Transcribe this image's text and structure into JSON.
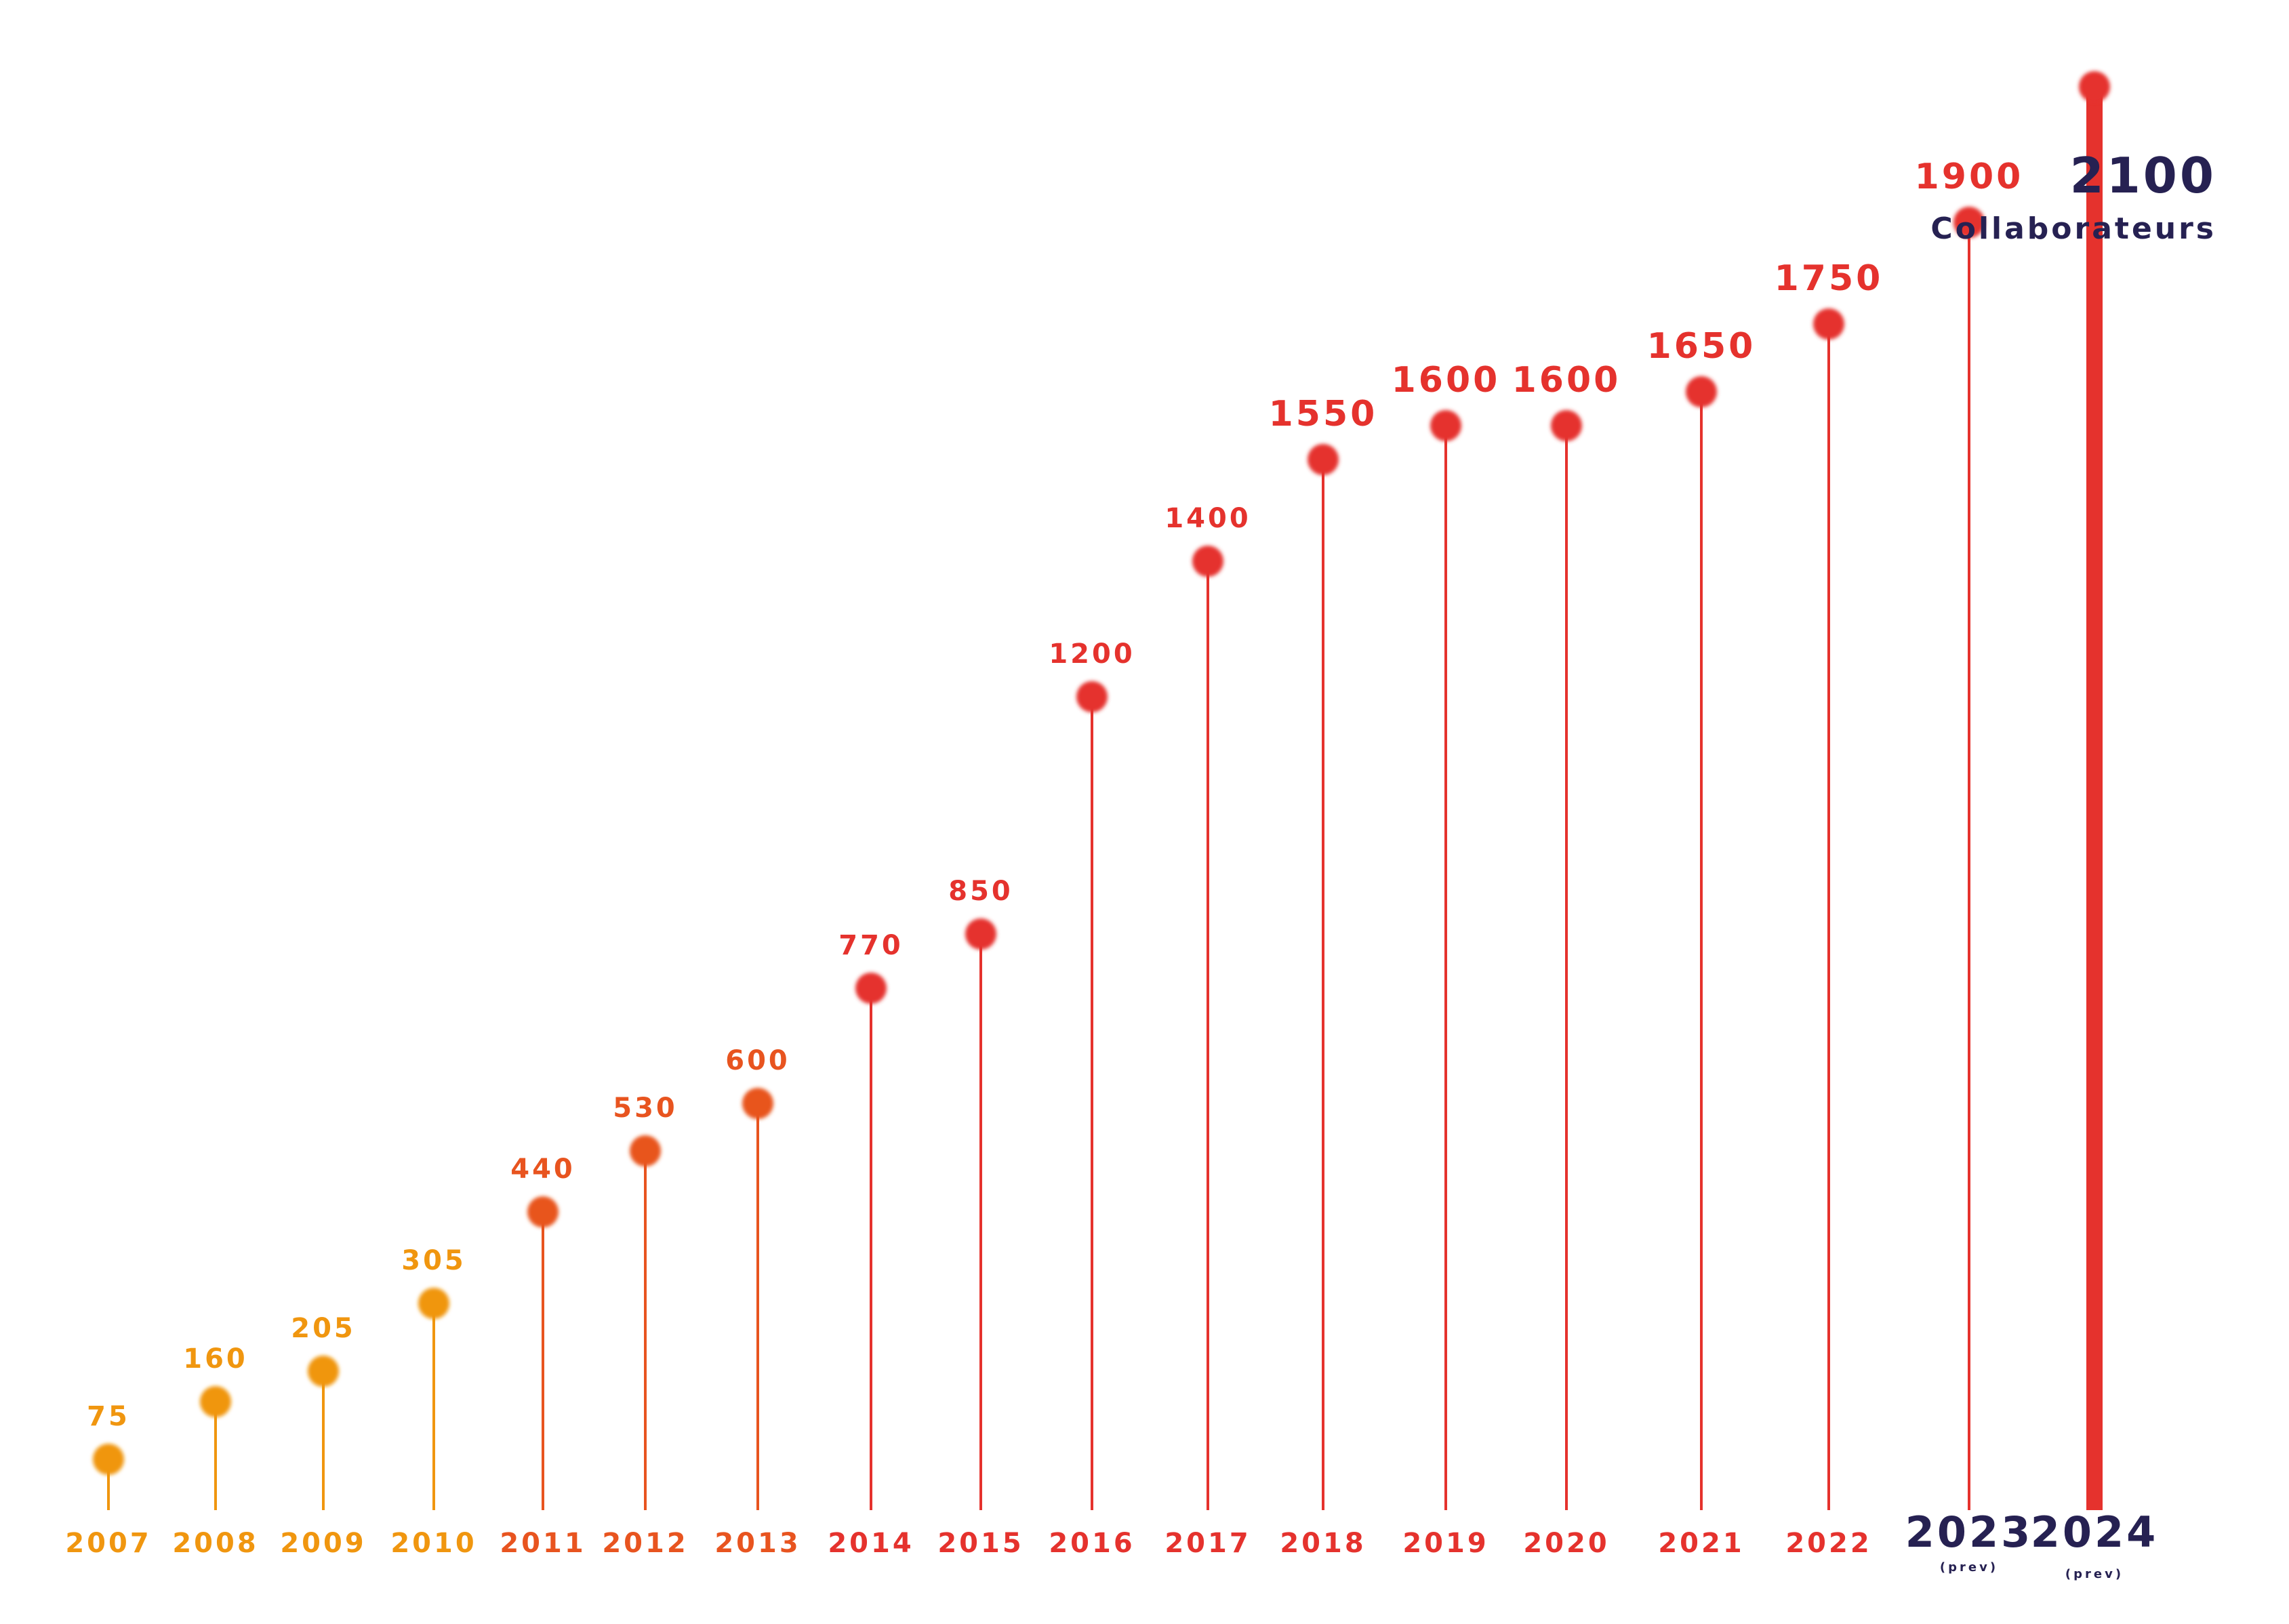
{
  "chart_data": {
    "type": "lollipop",
    "categories": [
      "2007",
      "2008",
      "2009",
      "2010",
      "2011",
      "2012",
      "2013",
      "2014",
      "2015",
      "2016",
      "2017",
      "2018",
      "2019",
      "2020",
      "2021",
      "2022",
      "2023",
      "2024"
    ],
    "values": [
      75,
      160,
      205,
      305,
      440,
      530,
      600,
      770,
      850,
      1200,
      1400,
      1550,
      1600,
      1600,
      1650,
      1750,
      1900,
      2100
    ],
    "value_labels": [
      "75",
      "160",
      "205",
      "305",
      "440",
      "530",
      "600",
      "770",
      "850",
      "1200",
      "1400",
      "1550",
      "1600",
      "1600",
      "1650",
      "1750",
      "1900",
      "2100"
    ],
    "category_notes": [
      "",
      "",
      "",
      "",
      "",
      "",
      "",
      "",
      "",
      "",
      "",
      "",
      "",
      "",
      "",
      "",
      "(prev)",
      "(prev)"
    ],
    "highlight_caption": "Collaborateurs",
    "grid": false,
    "colors": {
      "early": "#f0960f",
      "transition": "#e8541f",
      "main": "#e5322d",
      "forecast_label": "#262152"
    }
  }
}
